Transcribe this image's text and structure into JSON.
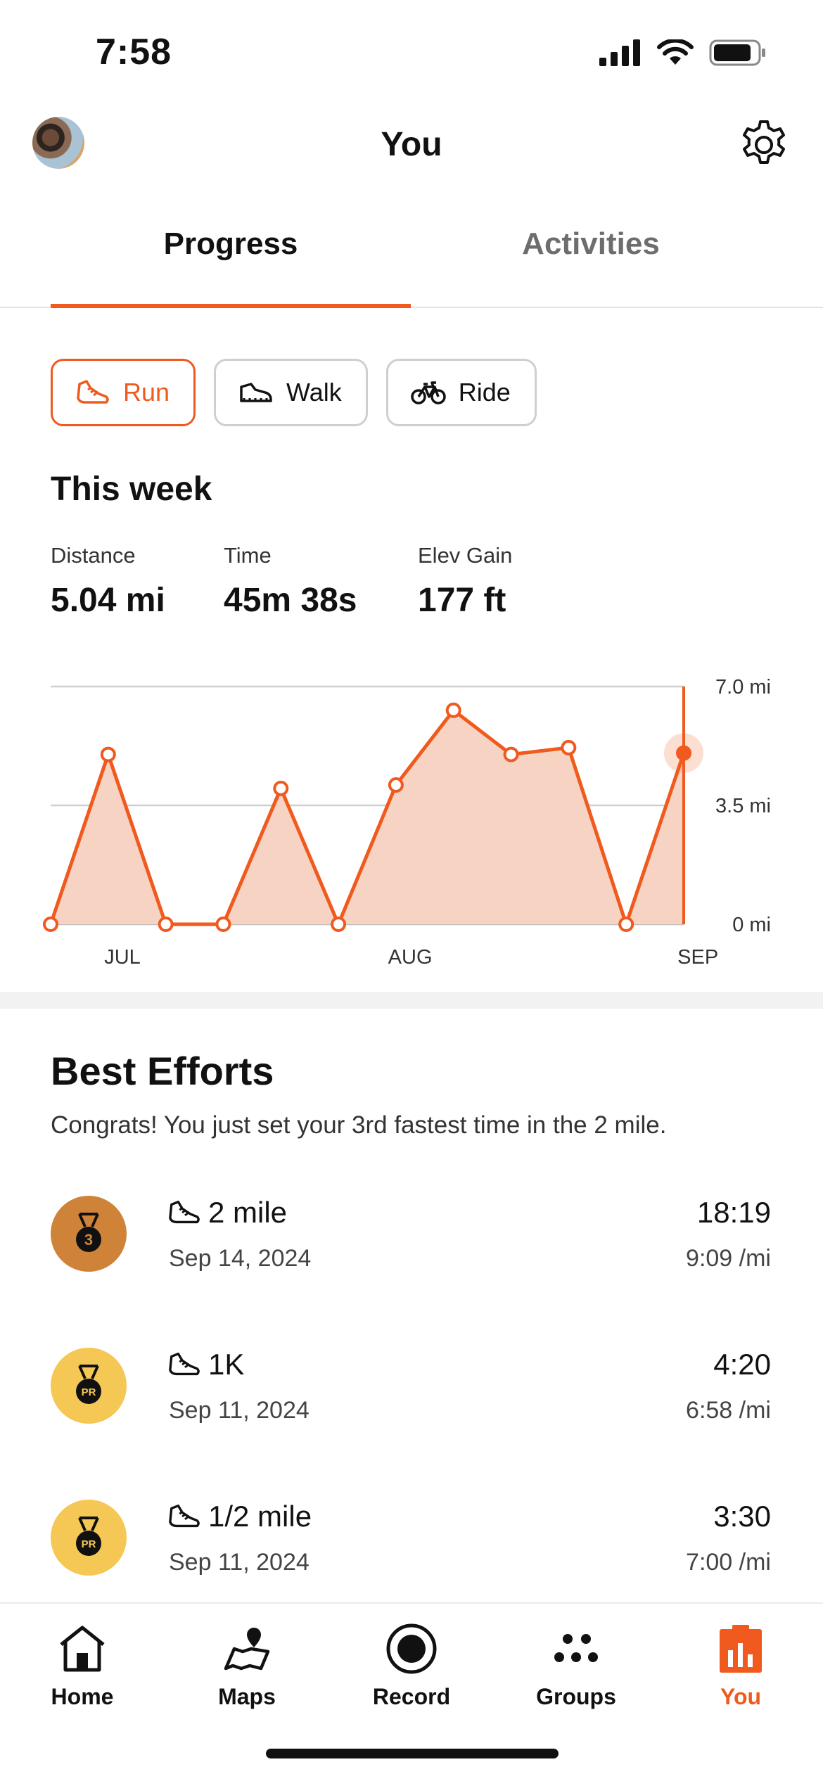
{
  "status": {
    "time": "7:58"
  },
  "header": {
    "title": "You"
  },
  "tabs": [
    {
      "label": "Progress",
      "active": true
    },
    {
      "label": "Activities",
      "active": false
    }
  ],
  "sports": [
    {
      "label": "Run",
      "icon": "run-shoe-icon",
      "active": true
    },
    {
      "label": "Walk",
      "icon": "walk-shoe-icon",
      "active": false
    },
    {
      "label": "Ride",
      "icon": "bike-icon",
      "active": false
    }
  ],
  "this_week": {
    "title": "This week",
    "stats": [
      {
        "label": "Distance",
        "value": "5.04 mi"
      },
      {
        "label": "Time",
        "value": "45m 38s"
      },
      {
        "label": "Elev Gain",
        "value": "177 ft"
      }
    ]
  },
  "chart_data": {
    "type": "area",
    "x": [
      "JUL",
      "",
      "",
      "",
      "",
      "AUG",
      "",
      "",
      "",
      "",
      "SEP",
      ""
    ],
    "xtick_labels": [
      "JUL",
      "AUG",
      "SEP"
    ],
    "series": [
      {
        "values": [
          0,
          5.0,
          0,
          0,
          4.0,
          0,
          4.1,
          6.3,
          5.0,
          5.2,
          0,
          5.04
        ]
      }
    ],
    "yticks": [
      "7.0 mi",
      "3.5 mi",
      "0 mi"
    ],
    "ylim": [
      0,
      7.0
    ],
    "grid": true,
    "accent_color": "#f05a1e",
    "fill_color": "#f7d3c3"
  },
  "best_efforts": {
    "title": "Best Efforts",
    "subtitle": "Congrats! You just set your 3rd fastest time in the 2 mile.",
    "items": [
      {
        "medal": "3",
        "medal_color": "#cf8338",
        "name": "2 mile",
        "date": "Sep 14, 2024",
        "time": "18:19",
        "pace": "9:09 /mi"
      },
      {
        "medal": "PR",
        "medal_color": "#f5c754",
        "name": "1K",
        "date": "Sep 11, 2024",
        "time": "4:20",
        "pace": "6:58 /mi"
      },
      {
        "medal": "PR",
        "medal_color": "#f5c754",
        "name": "1/2 mile",
        "date": "Sep 11, 2024",
        "time": "3:30",
        "pace": "7:00 /mi"
      }
    ]
  },
  "nav": [
    {
      "label": "Home",
      "icon": "home-icon",
      "active": false
    },
    {
      "label": "Maps",
      "icon": "map-icon",
      "active": false
    },
    {
      "label": "Record",
      "icon": "record-icon",
      "active": false
    },
    {
      "label": "Groups",
      "icon": "groups-icon",
      "active": false
    },
    {
      "label": "You",
      "icon": "you-chart-icon",
      "active": true
    }
  ]
}
